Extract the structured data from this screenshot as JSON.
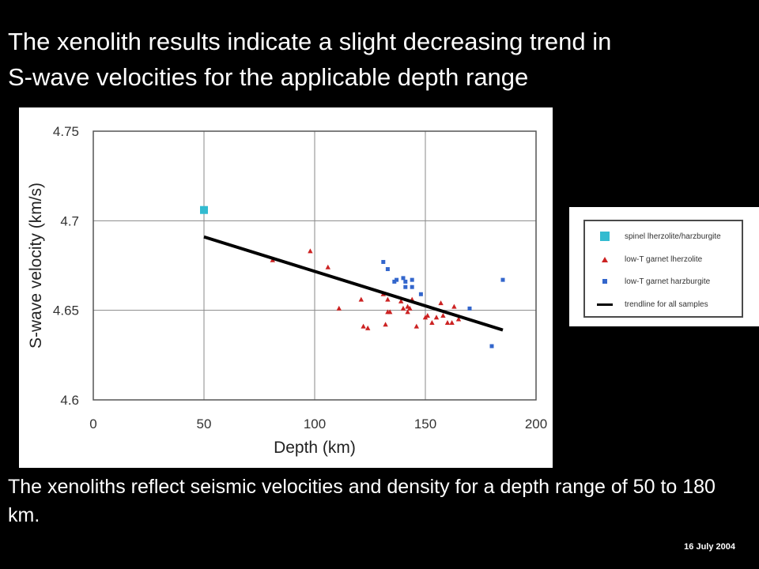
{
  "slide": {
    "title_line1": "The xenolith results indicate a slight decreasing trend in",
    "title_line2": "S-wave velocities for the applicable depth range",
    "body_text": "The xenoliths reflect seismic velocities and density for a depth range of 50 to 180 km.",
    "date": "16 July 2004",
    "background": "#000000",
    "text_color": "#ffffff"
  },
  "chart_data": {
    "type": "scatter",
    "title": "",
    "xlabel": "Depth (km)",
    "ylabel": "S-wave velocity (km/s)",
    "xlim": [
      0,
      200
    ],
    "ylim": [
      4.6,
      4.75
    ],
    "x_ticks": [
      0,
      50,
      100,
      150,
      200
    ],
    "y_ticks": [
      4.6,
      4.65,
      4.7,
      4.75
    ],
    "x_tick_labels": [
      "0",
      "50",
      "100",
      "150",
      "200"
    ],
    "y_tick_labels": [
      "4.6",
      "4.65",
      "4.7",
      "4.75"
    ],
    "grid": true,
    "legend_position": "outside-right",
    "series": [
      {
        "name": "spinel lherzolite/harzburgite",
        "marker": "square-large",
        "color": "#33bbd0",
        "points": [
          [
            50,
            4.706
          ]
        ]
      },
      {
        "name": "low-T garnet lherzolite",
        "marker": "triangle",
        "color": "#cc2222",
        "points": [
          [
            81,
            4.678
          ],
          [
            98,
            4.683
          ],
          [
            106,
            4.674
          ],
          [
            111,
            4.651
          ],
          [
            121,
            4.656
          ],
          [
            122,
            4.641
          ],
          [
            124,
            4.64
          ],
          [
            131,
            4.659
          ],
          [
            132,
            4.642
          ],
          [
            133,
            4.656
          ],
          [
            133,
            4.649
          ],
          [
            134,
            4.649
          ],
          [
            139,
            4.655
          ],
          [
            140,
            4.651
          ],
          [
            142,
            4.649
          ],
          [
            142,
            4.652
          ],
          [
            143,
            4.651
          ],
          [
            144,
            4.656
          ],
          [
            146,
            4.641
          ],
          [
            150,
            4.646
          ],
          [
            151,
            4.647
          ],
          [
            153,
            4.643
          ],
          [
            155,
            4.646
          ],
          [
            157,
            4.654
          ],
          [
            158,
            4.647
          ],
          [
            160,
            4.643
          ],
          [
            162,
            4.643
          ],
          [
            163,
            4.652
          ],
          [
            165,
            4.645
          ]
        ]
      },
      {
        "name": "low-T garnet harzburgite",
        "marker": "square-small",
        "color": "#3366cc",
        "points": [
          [
            131,
            4.677
          ],
          [
            133,
            4.673
          ],
          [
            136,
            4.666
          ],
          [
            137,
            4.667
          ],
          [
            140,
            4.668
          ],
          [
            141,
            4.663
          ],
          [
            141,
            4.666
          ],
          [
            144,
            4.667
          ],
          [
            144,
            4.663
          ],
          [
            148,
            4.659
          ],
          [
            170,
            4.651
          ],
          [
            180,
            4.63
          ],
          [
            185,
            4.667
          ]
        ]
      },
      {
        "name": "trendline for all samples",
        "marker": "line",
        "color": "#000000",
        "points": [
          [
            50,
            4.691
          ],
          [
            185,
            4.639
          ]
        ]
      }
    ]
  }
}
